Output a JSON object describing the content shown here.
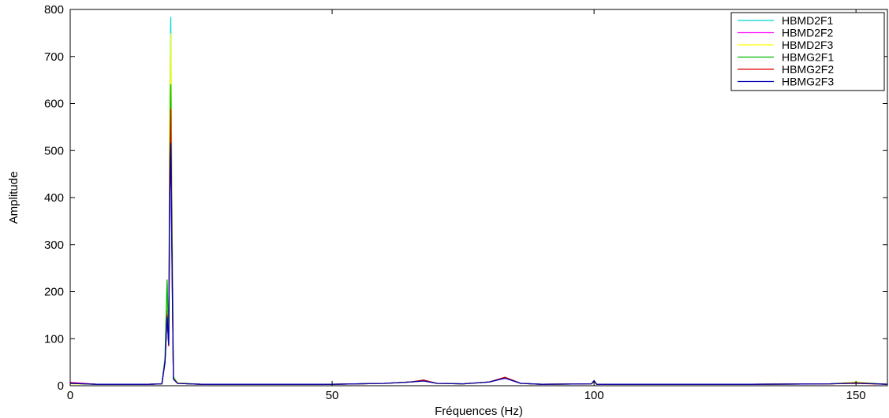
{
  "chart_data": {
    "type": "line",
    "xlabel": "Fréquences (Hz)",
    "ylabel": "Amplitude",
    "xlim": [
      0,
      156
    ],
    "ylim": [
      0,
      800
    ],
    "xticks": [
      0,
      50,
      100,
      150
    ],
    "yticks": [
      0,
      100,
      200,
      300,
      400,
      500,
      600,
      700,
      800
    ],
    "grid": false,
    "legend_position": "top-right",
    "series": [
      {
        "name": "HBMD2F1",
        "color": "#00d2d2",
        "points": [
          [
            0,
            5
          ],
          [
            5,
            3
          ],
          [
            10,
            3
          ],
          [
            15,
            3
          ],
          [
            17.5,
            4
          ],
          [
            18.1,
            60
          ],
          [
            18.5,
            220
          ],
          [
            18.8,
            90
          ],
          [
            19.0,
            600
          ],
          [
            19.2,
            783
          ],
          [
            19.4,
            420
          ],
          [
            19.7,
            20
          ],
          [
            20.5,
            6
          ],
          [
            25,
            3
          ],
          [
            35,
            3
          ],
          [
            50,
            3
          ],
          [
            60,
            5
          ],
          [
            65,
            8
          ],
          [
            67.5,
            12
          ],
          [
            70,
            5
          ],
          [
            75,
            4
          ],
          [
            80,
            8
          ],
          [
            83,
            18
          ],
          [
            86,
            5
          ],
          [
            90,
            3
          ],
          [
            99.5,
            4
          ],
          [
            100,
            10
          ],
          [
            100.5,
            3
          ],
          [
            110,
            3
          ],
          [
            130,
            3
          ],
          [
            145,
            4
          ],
          [
            150,
            7
          ],
          [
            156,
            3
          ]
        ]
      },
      {
        "name": "HBMD2F2",
        "color": "#ff00ff",
        "points": [
          [
            0,
            7
          ],
          [
            5,
            3
          ],
          [
            10,
            3
          ],
          [
            15,
            3
          ],
          [
            17.5,
            4
          ],
          [
            18.1,
            50
          ],
          [
            18.5,
            160
          ],
          [
            18.8,
            85
          ],
          [
            19.0,
            400
          ],
          [
            19.2,
            510
          ],
          [
            19.4,
            300
          ],
          [
            19.7,
            15
          ],
          [
            20.5,
            5
          ],
          [
            25,
            3
          ],
          [
            35,
            3
          ],
          [
            50,
            3
          ],
          [
            60,
            5
          ],
          [
            65,
            8
          ],
          [
            67.5,
            11
          ],
          [
            70,
            5
          ],
          [
            75,
            4
          ],
          [
            80,
            8
          ],
          [
            83,
            16
          ],
          [
            86,
            5
          ],
          [
            90,
            3
          ],
          [
            99.5,
            4
          ],
          [
            100,
            9
          ],
          [
            100.5,
            3
          ],
          [
            110,
            3
          ],
          [
            130,
            3
          ],
          [
            145,
            4
          ],
          [
            150,
            6
          ],
          [
            156,
            3
          ]
        ]
      },
      {
        "name": "HBMD2F3",
        "color": "#ffff00",
        "points": [
          [
            0,
            4
          ],
          [
            5,
            3
          ],
          [
            10,
            3
          ],
          [
            15,
            3
          ],
          [
            17.5,
            4
          ],
          [
            18.1,
            55
          ],
          [
            18.5,
            210
          ],
          [
            18.8,
            95
          ],
          [
            19.0,
            560
          ],
          [
            19.2,
            748
          ],
          [
            19.4,
            400
          ],
          [
            19.7,
            18
          ],
          [
            20.5,
            6
          ],
          [
            25,
            3
          ],
          [
            35,
            3
          ],
          [
            50,
            3
          ],
          [
            60,
            5
          ],
          [
            65,
            8
          ],
          [
            67.5,
            10
          ],
          [
            70,
            5
          ],
          [
            75,
            4
          ],
          [
            80,
            8
          ],
          [
            83,
            17
          ],
          [
            86,
            5
          ],
          [
            90,
            3
          ],
          [
            99.5,
            4
          ],
          [
            100,
            8
          ],
          [
            100.5,
            3
          ],
          [
            110,
            3
          ],
          [
            130,
            3
          ],
          [
            145,
            4
          ],
          [
            150,
            8
          ],
          [
            156,
            3
          ]
        ]
      },
      {
        "name": "HBMG2F1",
        "color": "#00b400",
        "points": [
          [
            0,
            5
          ],
          [
            5,
            3
          ],
          [
            10,
            3
          ],
          [
            15,
            3
          ],
          [
            17.5,
            4
          ],
          [
            18.1,
            55
          ],
          [
            18.5,
            225
          ],
          [
            18.8,
            90
          ],
          [
            19.0,
            480
          ],
          [
            19.2,
            640
          ],
          [
            19.4,
            350
          ],
          [
            19.7,
            16
          ],
          [
            20.5,
            5
          ],
          [
            25,
            3
          ],
          [
            35,
            3
          ],
          [
            50,
            3
          ],
          [
            60,
            5
          ],
          [
            65,
            8
          ],
          [
            67.5,
            11
          ],
          [
            70,
            5
          ],
          [
            75,
            4
          ],
          [
            80,
            8
          ],
          [
            83,
            17
          ],
          [
            86,
            5
          ],
          [
            90,
            3
          ],
          [
            99.5,
            4
          ],
          [
            100,
            9
          ],
          [
            100.5,
            3
          ],
          [
            110,
            3
          ],
          [
            130,
            3
          ],
          [
            145,
            4
          ],
          [
            150,
            6
          ],
          [
            156,
            3
          ]
        ]
      },
      {
        "name": "HBMG2F2",
        "color": "#dc0000",
        "points": [
          [
            0,
            6
          ],
          [
            5,
            3
          ],
          [
            10,
            3
          ],
          [
            15,
            3
          ],
          [
            17.5,
            4
          ],
          [
            18.1,
            50
          ],
          [
            18.5,
            150
          ],
          [
            18.8,
            85
          ],
          [
            19.0,
            450
          ],
          [
            19.2,
            588
          ],
          [
            19.4,
            320
          ],
          [
            19.7,
            15
          ],
          [
            20.5,
            5
          ],
          [
            25,
            3
          ],
          [
            35,
            3
          ],
          [
            50,
            3
          ],
          [
            60,
            5
          ],
          [
            65,
            8
          ],
          [
            67.5,
            12
          ],
          [
            70,
            5
          ],
          [
            75,
            4
          ],
          [
            80,
            8
          ],
          [
            83,
            18
          ],
          [
            86,
            5
          ],
          [
            90,
            3
          ],
          [
            99.5,
            4
          ],
          [
            100,
            10
          ],
          [
            100.5,
            3
          ],
          [
            110,
            3
          ],
          [
            130,
            3
          ],
          [
            145,
            4
          ],
          [
            150,
            5
          ],
          [
            156,
            3
          ]
        ]
      },
      {
        "name": "HBMG2F3",
        "color": "#0000b4",
        "points": [
          [
            0,
            5
          ],
          [
            5,
            3
          ],
          [
            10,
            3
          ],
          [
            15,
            3
          ],
          [
            17.5,
            4
          ],
          [
            18.1,
            50
          ],
          [
            18.5,
            145
          ],
          [
            18.8,
            88
          ],
          [
            19.0,
            400
          ],
          [
            19.2,
            515
          ],
          [
            19.4,
            290
          ],
          [
            19.7,
            14
          ],
          [
            20.5,
            5
          ],
          [
            25,
            3
          ],
          [
            35,
            3
          ],
          [
            50,
            3
          ],
          [
            60,
            5
          ],
          [
            65,
            8
          ],
          [
            67.5,
            10
          ],
          [
            70,
            5
          ],
          [
            75,
            4
          ],
          [
            80,
            8
          ],
          [
            83,
            16
          ],
          [
            86,
            5
          ],
          [
            90,
            3
          ],
          [
            99.5,
            4
          ],
          [
            100,
            11
          ],
          [
            100.5,
            3
          ],
          [
            110,
            3
          ],
          [
            130,
            3
          ],
          [
            145,
            4
          ],
          [
            150,
            6
          ],
          [
            156,
            3
          ]
        ]
      }
    ]
  }
}
